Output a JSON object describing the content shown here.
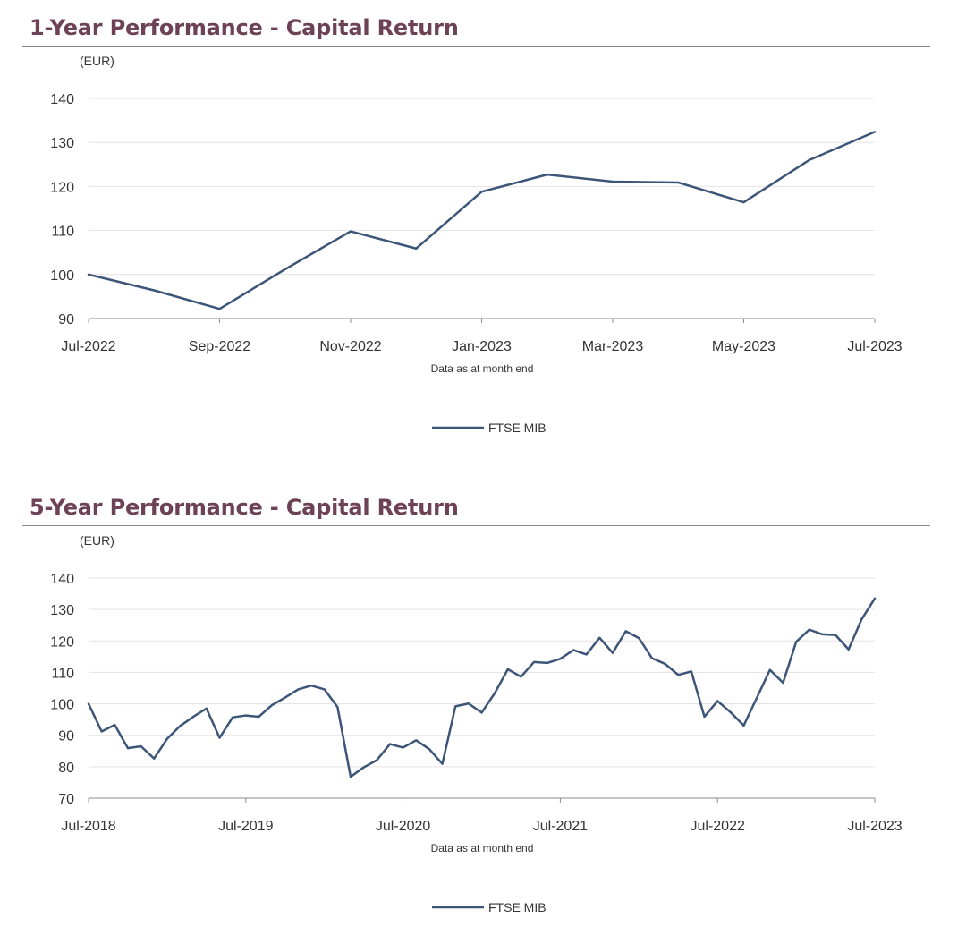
{
  "colors": {
    "title": "#6e4256",
    "series": "#3d5578",
    "grid": "#e3e3e3",
    "axis": "#8c8c8c"
  },
  "chart_data": [
    {
      "type": "line",
      "title": "1-Year Performance - Capital Return",
      "unit_label": "(EUR)",
      "xlabel": "Data as at month end",
      "ylabel": "",
      "ylim": [
        90,
        140
      ],
      "yticks": [
        90,
        100,
        110,
        120,
        130,
        140
      ],
      "xtick_labels": [
        "Jul-2022",
        "Sep-2022",
        "Nov-2022",
        "Jan-2023",
        "Mar-2023",
        "May-2023",
        "Jul-2023"
      ],
      "grid": true,
      "legend_position": "bottom-center",
      "x": [
        "Jul-2022",
        "Aug-2022",
        "Sep-2022",
        "Oct-2022",
        "Nov-2022",
        "Dec-2022",
        "Jan-2023",
        "Feb-2023",
        "Mar-2023",
        "Apr-2023",
        "May-2023",
        "Jun-2023",
        "Jul-2023"
      ],
      "series": [
        {
          "name": "FTSE MIB",
          "values": [
            100,
            96.4,
            92.2,
            101.2,
            109.8,
            105.9,
            118.8,
            122.7,
            121.1,
            120.9,
            116.4,
            126,
            132.4
          ]
        }
      ]
    },
    {
      "type": "line",
      "title": "5-Year Performance - Capital Return",
      "unit_label": "(EUR)",
      "xlabel": "Data as at month end",
      "ylabel": "",
      "ylim": [
        70,
        140
      ],
      "yticks": [
        70,
        80,
        90,
        100,
        110,
        120,
        130,
        140
      ],
      "xtick_labels": [
        "Jul-2018",
        "Jul-2019",
        "Jul-2020",
        "Jul-2021",
        "Jul-2022",
        "Jul-2023"
      ],
      "grid": true,
      "legend_position": "bottom-center",
      "x": [
        "Jul-2018",
        "Aug-2018",
        "Sep-2018",
        "Oct-2018",
        "Nov-2018",
        "Dec-2018",
        "Jan-2019",
        "Feb-2019",
        "Mar-2019",
        "Apr-2019",
        "May-2019",
        "Jun-2019",
        "Jul-2019",
        "Aug-2019",
        "Sep-2019",
        "Oct-2019",
        "Nov-2019",
        "Dec-2019",
        "Jan-2020",
        "Feb-2020",
        "Mar-2020",
        "Apr-2020",
        "May-2020",
        "Jun-2020",
        "Jul-2020",
        "Aug-2020",
        "Sep-2020",
        "Oct-2020",
        "Nov-2020",
        "Dec-2020",
        "Jan-2021",
        "Feb-2021",
        "Mar-2021",
        "Apr-2021",
        "May-2021",
        "Jun-2021",
        "Jul-2021",
        "Aug-2021",
        "Sep-2021",
        "Oct-2021",
        "Nov-2021",
        "Dec-2021",
        "Jan-2022",
        "Feb-2022",
        "Mar-2022",
        "Apr-2022",
        "May-2022",
        "Jun-2022",
        "Jul-2022",
        "Aug-2022",
        "Sep-2022",
        "Oct-2022",
        "Nov-2022",
        "Dec-2022",
        "Jan-2023",
        "Feb-2023",
        "Mar-2023",
        "Apr-2023",
        "May-2023",
        "Jun-2023",
        "Jul-2023"
      ],
      "series": [
        {
          "name": "FTSE MIB",
          "values": [
            100,
            91.2,
            93.3,
            85.9,
            86.5,
            82.6,
            88.9,
            93,
            95.9,
            98.5,
            89.2,
            95.7,
            96.3,
            95.9,
            99.6,
            102,
            104.6,
            105.8,
            104.6,
            99,
            76.8,
            79.8,
            82.1,
            87.2,
            86.1,
            88.4,
            85.6,
            80.9,
            99.2,
            100.1,
            97.2,
            103.4,
            111,
            108.6,
            113.3,
            113,
            114.3,
            117.1,
            115.7,
            121,
            116.2,
            123.1,
            120.9,
            114.5,
            112.7,
            109.2,
            110.3,
            95.9,
            100.9,
            97.3,
            93.1,
            101.9,
            110.8,
            106.7,
            119.7,
            123.6,
            122.1,
            121.9,
            117.3,
            126.9,
            133.5
          ]
        }
      ]
    }
  ]
}
